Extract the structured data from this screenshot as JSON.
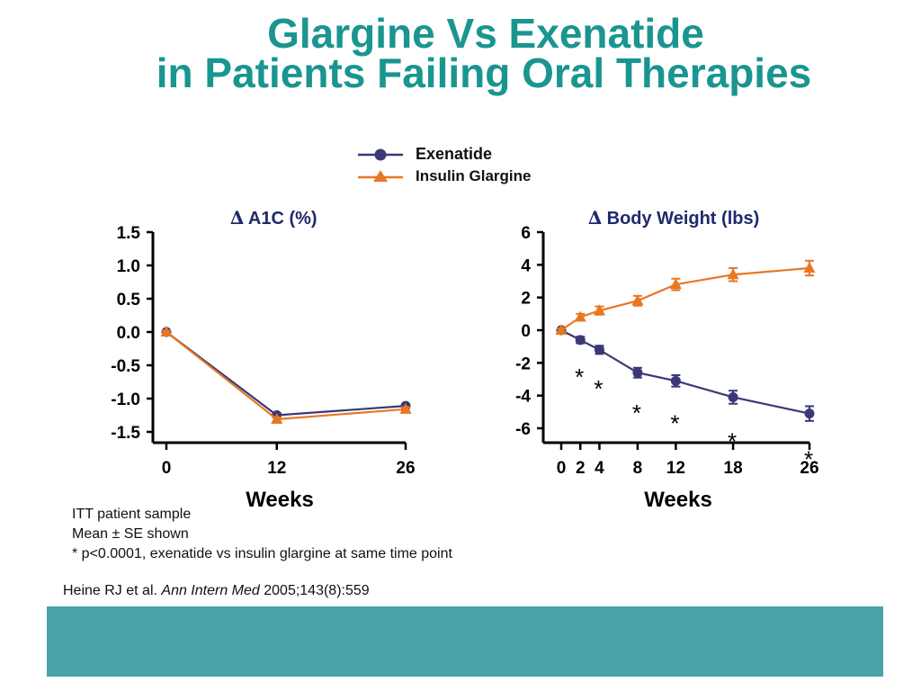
{
  "slide": {
    "title_line1": "Glargine Vs Exenatide",
    "title_line2": "in Patients Failing Oral Therapies"
  },
  "legend": [
    {
      "label": "Exenatide",
      "color": "#3a3876",
      "marker": "circle"
    },
    {
      "label": "Insulin Glargine",
      "color": "#e87722",
      "marker": "triangle"
    }
  ],
  "chart_data": [
    {
      "type": "line",
      "title_symbol": "∆",
      "title": "A1C (%)",
      "xlabel": "Weeks",
      "x_ticks": [
        0,
        12,
        26
      ],
      "xlim": [
        0,
        26
      ],
      "ylim": [
        -1.5,
        1.5
      ],
      "y_ticks": [
        1.5,
        1.0,
        0.5,
        0.0,
        -0.5,
        -1.0,
        -1.5
      ],
      "y_tick_labels": [
        "1.5",
        "1.0",
        "0.5",
        "0.0",
        "-0.5",
        "-1.0",
        "-1.5"
      ],
      "series": [
        {
          "name": "Exenatide",
          "color": "#3a3876",
          "marker": "circle",
          "x": [
            0,
            12,
            26
          ],
          "y": [
            0.0,
            -1.25,
            -1.11
          ],
          "err": [
            0.02,
            0.03,
            0.03
          ]
        },
        {
          "name": "Insulin Glargine",
          "color": "#e87722",
          "marker": "triangle",
          "x": [
            0,
            12,
            26
          ],
          "y": [
            0.0,
            -1.31,
            -1.16
          ],
          "err": [
            0.02,
            0.03,
            0.03
          ]
        }
      ]
    },
    {
      "type": "line",
      "title_symbol": "∆",
      "title": "Body Weight (lbs)",
      "xlabel": "Weeks",
      "x_ticks": [
        0,
        2,
        4,
        8,
        12,
        18,
        26
      ],
      "xlim": [
        0,
        26
      ],
      "ylim": [
        -6,
        6
      ],
      "y_ticks": [
        6,
        4,
        2,
        0,
        -2,
        -4,
        -6
      ],
      "y_tick_labels": [
        "6",
        "4",
        "2",
        "0",
        "-2",
        "-4",
        "-6"
      ],
      "series": [
        {
          "name": "Exenatide",
          "color": "#3a3876",
          "marker": "circle",
          "x": [
            0,
            2,
            4,
            8,
            12,
            18,
            26
          ],
          "y": [
            0.0,
            -0.6,
            -1.2,
            -2.6,
            -3.1,
            -4.1,
            -5.1
          ],
          "err": [
            0.1,
            0.2,
            0.25,
            0.3,
            0.35,
            0.4,
            0.45
          ]
        },
        {
          "name": "Insulin Glargine",
          "color": "#e87722",
          "marker": "triangle",
          "x": [
            0,
            2,
            4,
            8,
            12,
            18,
            26
          ],
          "y": [
            0.0,
            0.8,
            1.2,
            1.8,
            2.8,
            3.4,
            3.8
          ],
          "err": [
            0.1,
            0.2,
            0.25,
            0.3,
            0.35,
            0.4,
            0.45
          ]
        }
      ],
      "annotations": {
        "text": "*",
        "x": [
          2,
          4,
          8,
          12,
          18,
          26
        ]
      }
    }
  ],
  "notes": [
    "ITT patient sample",
    "Mean ± SE shown",
    "* p<0.0001, exenatide vs insulin glargine at same time point"
  ],
  "citation": {
    "authors": "Heine RJ et al. ",
    "journal": "Ann Intern Med",
    "details": " 2005;143(8):559"
  }
}
